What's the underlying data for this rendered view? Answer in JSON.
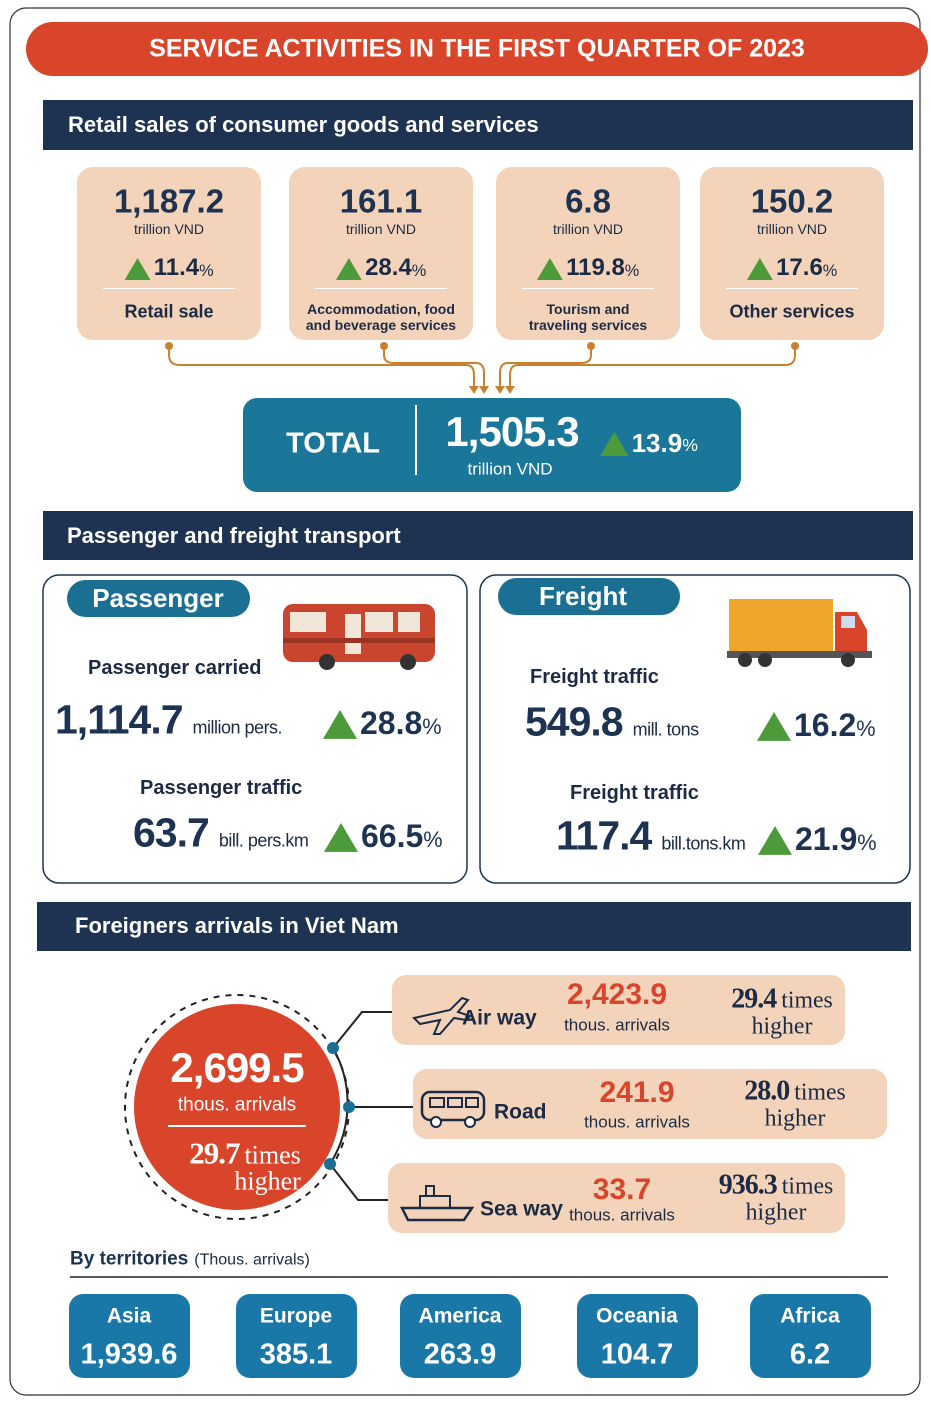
{
  "title": "SERVICE ACTIVITIES IN THE FIRST QUARTER OF 2023",
  "retail": {
    "heading": "Retail sales of consumer goods and services",
    "cards": [
      {
        "value": "1,187.2",
        "unit": "trillion VND",
        "growth": "11.4",
        "growth_unit": "%",
        "label": "Retail sale"
      },
      {
        "value": "161.1",
        "unit": "trillion VND",
        "growth": "28.4",
        "growth_unit": "%",
        "label": "Accommodation, food and beverage services"
      },
      {
        "value": "6.8",
        "unit": "trillion VND",
        "growth": "119.8",
        "growth_unit": "%",
        "label": "Tourism and traveling services"
      },
      {
        "value": "150.2",
        "unit": "trillion VND",
        "growth": "17.6",
        "growth_unit": "%",
        "label": "Other services"
      }
    ],
    "total": {
      "label": "TOTAL",
      "value": "1,505.3",
      "unit": "trillion VND",
      "growth": "13.9",
      "growth_unit": "%"
    }
  },
  "transport": {
    "heading": "Passenger and freight transport",
    "passenger": {
      "title": "Passenger",
      "items": [
        {
          "label": "Passenger carried",
          "value": "1,114.7",
          "unit": "million pers.",
          "growth": "28.8",
          "growth_unit": "%"
        },
        {
          "label": "Passenger traffic",
          "value": "63.7",
          "unit": "bill. pers.km",
          "growth": "66.5",
          "growth_unit": "%"
        }
      ]
    },
    "freight": {
      "title": "Freight",
      "items": [
        {
          "label": "Freight traffic",
          "value": "549.8",
          "unit": "mill. tons",
          "growth": "16.2",
          "growth_unit": "%"
        },
        {
          "label": "Freight traffic",
          "value": "117.4",
          "unit": "bill.tons.km",
          "growth": "21.9",
          "growth_unit": "%"
        }
      ]
    }
  },
  "arrivals": {
    "heading": "Foreigners arrivals in Viet Nam",
    "total": {
      "value": "2,699.5",
      "unit": "thous. arrivals",
      "times": "29.7",
      "times_unit": "times",
      "times_note": "higher"
    },
    "modes": [
      {
        "name": "Air way",
        "value": "2,423.9",
        "unit": "thous. arrivals",
        "times": "29.4",
        "times_unit": "times",
        "times_note": "higher"
      },
      {
        "name": "Road",
        "value": "241.9",
        "unit": "thous. arrivals",
        "times": "28.0",
        "times_unit": "times",
        "times_note": "higher"
      },
      {
        "name": "Sea way",
        "value": "33.7",
        "unit": "thous. arrivals",
        "times": "936.3",
        "times_unit": "times",
        "times_note": "higher"
      }
    ],
    "territories_label": "By territories",
    "territories_note": "(Thous. arrivals)",
    "territories": [
      {
        "name": "Asia",
        "value": "1,939.6"
      },
      {
        "name": "Europe",
        "value": "385.1"
      },
      {
        "name": "America",
        "value": "263.9"
      },
      {
        "name": "Oceania",
        "value": "104.7"
      },
      {
        "name": "Africa",
        "value": "6.2"
      }
    ]
  }
}
